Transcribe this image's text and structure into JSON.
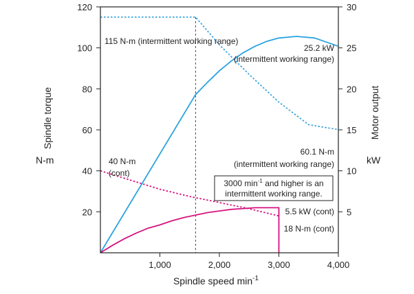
{
  "colors": {
    "torque_intermittent": "#3aa3dc",
    "output_intermittent": "#2ba3e0",
    "output_cont": "#d6127f",
    "torque_cont": "#d6127f",
    "axis": "#222222",
    "guide": "#444444"
  },
  "chart_data": {
    "type": "line",
    "xlabel": "Spindle speed min",
    "xlabel_sup": "-1",
    "xlim": [
      0,
      4000
    ],
    "x_ticks": [
      1000,
      2000,
      3000,
      4000
    ],
    "x_tick_labels": [
      "1,000",
      "2,000",
      "3,000",
      "4,000"
    ],
    "y_left": {
      "label": "Spindle torque",
      "unit": "N-m",
      "lim": [
        0,
        120
      ],
      "ticks": [
        20,
        40,
        60,
        80,
        100,
        120
      ],
      "tick_labels": [
        "20",
        "40",
        "60",
        "80",
        "100",
        "120"
      ]
    },
    "y_right": {
      "label": "Motor output",
      "unit": "kW",
      "lim": [
        0,
        30
      ],
      "ticks": [
        5,
        10,
        15,
        20,
        25,
        30
      ],
      "tick_labels": [
        "5",
        "10",
        "15",
        "20",
        "25",
        "30"
      ]
    },
    "series": [
      {
        "axis": "left",
        "style": "dotted",
        "color_key": "torque_intermittent",
        "points": [
          [
            0,
            115
          ],
          [
            1600,
            115
          ],
          [
            2000,
            101.5
          ],
          [
            2500,
            87
          ],
          [
            3000,
            73.5
          ],
          [
            3500,
            62.5
          ],
          [
            4000,
            60.1
          ]
        ]
      },
      {
        "axis": "right",
        "style": "solid",
        "color_key": "output_intermittent",
        "points": [
          [
            0,
            0
          ],
          [
            1600,
            19.3
          ],
          [
            1800,
            20.8
          ],
          [
            2000,
            22.2
          ],
          [
            2200,
            23.4
          ],
          [
            2400,
            24.4
          ],
          [
            2600,
            25.2
          ],
          [
            2800,
            25.8
          ],
          [
            3000,
            26.2
          ],
          [
            3300,
            26.4
          ],
          [
            3600,
            26.2
          ],
          [
            3800,
            25.7
          ],
          [
            4000,
            25.2
          ]
        ]
      },
      {
        "axis": "left",
        "style": "dotted",
        "color_key": "torque_cont",
        "points": [
          [
            0,
            40
          ],
          [
            500,
            35.5
          ],
          [
            1000,
            31
          ],
          [
            1500,
            27.5
          ],
          [
            2000,
            24.5
          ],
          [
            2500,
            21.5
          ],
          [
            3000,
            18
          ]
        ]
      },
      {
        "axis": "right",
        "style": "solid",
        "color_key": "output_cont",
        "points": [
          [
            0,
            0
          ],
          [
            200,
            0.9
          ],
          [
            400,
            1.7
          ],
          [
            600,
            2.4
          ],
          [
            800,
            3.0
          ],
          [
            1000,
            3.4
          ],
          [
            1200,
            3.9
          ],
          [
            1400,
            4.3
          ],
          [
            1600,
            4.6
          ],
          [
            1800,
            4.9
          ],
          [
            2000,
            5.1
          ],
          [
            2200,
            5.3
          ],
          [
            2400,
            5.4
          ],
          [
            2600,
            5.5
          ],
          [
            2800,
            5.5
          ],
          [
            3000,
            5.5
          ],
          [
            3000,
            0
          ]
        ]
      }
    ],
    "guide_x": 1600,
    "annotations": {
      "torque_intermittent": "115 N-m (intermittent working range)",
      "output_intermittent_value": "25.2 kW",
      "output_intermittent_range": "(intermittent working range)",
      "torque_max_speed_value": "60.1 N-m",
      "torque_max_speed_range": "(intermittent working range)",
      "torque_cont_value": "40 N-m",
      "torque_cont_range": "(cont)",
      "note_line1_a": "3000 min",
      "note_line1_sup": "-1",
      "note_line1_b": " and higher is an",
      "note_line2": "intermittent working range.",
      "output_cont": "5.5 kW (cont)",
      "torque_cont_end": "18 N-m (cont)"
    }
  }
}
